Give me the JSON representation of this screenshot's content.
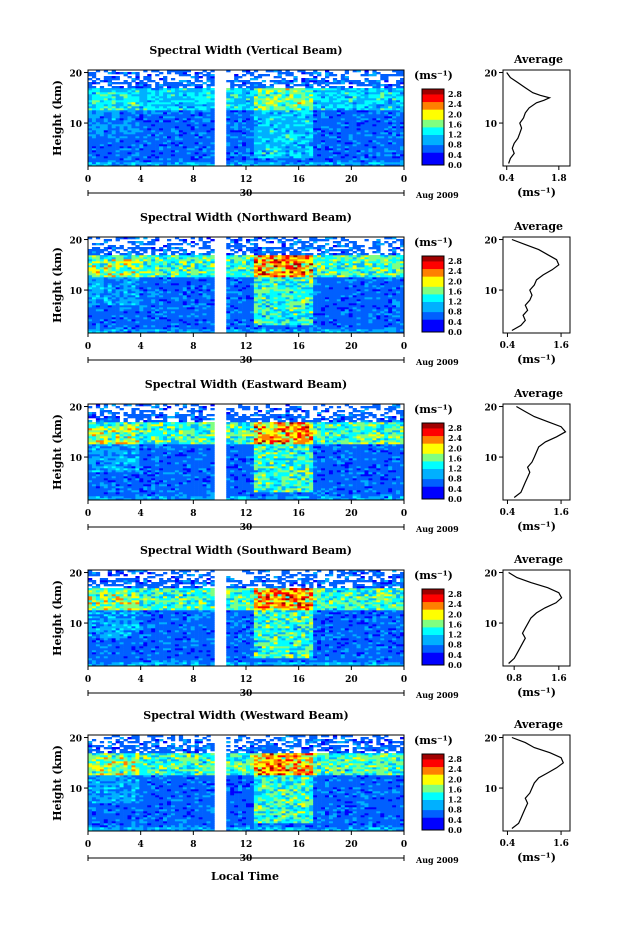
{
  "chart_data": {
    "type": "heatmap",
    "x_axis": {
      "ticks": [
        "0",
        "4",
        "8",
        "12",
        "16",
        "20",
        "0"
      ],
      "xlim": [
        0,
        24
      ],
      "label": "Local Time",
      "date_label": "30",
      "month_label": "Aug 2009"
    },
    "y_axis": {
      "ticks": [
        "20",
        "10"
      ],
      "ylim": [
        1.5,
        20.5
      ],
      "label": "Height (km)"
    },
    "colorbar": {
      "unit": "(ms⁻¹)",
      "ticks": [
        "2.8",
        "2.4",
        "2.0",
        "1.6",
        "1.2",
        "0.8",
        "0.4",
        "0.0"
      ],
      "range": [
        0.0,
        3.0
      ]
    },
    "colors": [
      "#2a2a8c",
      "#0000ff",
      "#0060ff",
      "#00b0ff",
      "#00ffff",
      "#80ff80",
      "#ffff00",
      "#ff8000",
      "#ff0000",
      "#a00000"
    ],
    "panels": [
      {
        "title": "Spectral Width (Vertical Beam)",
        "avg_title": "Average",
        "avg_xticks": [
          "0.4",
          "1.8"
        ],
        "avg_unit": "(ms⁻¹)",
        "avg_xlim": [
          0.3,
          2.1
        ],
        "avg_profile": [
          [
            0.45,
            2
          ],
          [
            0.5,
            3
          ],
          [
            0.6,
            4
          ],
          [
            0.55,
            5
          ],
          [
            0.6,
            6
          ],
          [
            0.7,
            7
          ],
          [
            0.75,
            8
          ],
          [
            0.8,
            9
          ],
          [
            0.75,
            10
          ],
          [
            0.85,
            11
          ],
          [
            0.9,
            12
          ],
          [
            1.0,
            13
          ],
          [
            1.2,
            14
          ],
          [
            1.4,
            14.5
          ],
          [
            1.55,
            15
          ],
          [
            1.3,
            15.5
          ],
          [
            1.1,
            16
          ],
          [
            0.9,
            17
          ],
          [
            0.7,
            18
          ],
          [
            0.5,
            19
          ],
          [
            0.4,
            20
          ]
        ]
      },
      {
        "title": "Spectral Width (Northward Beam)",
        "avg_title": "Average",
        "avg_xticks": [
          "0.4",
          "1.6"
        ],
        "avg_unit": "(ms⁻¹)",
        "avg_xlim": [
          0.3,
          1.8
        ],
        "avg_profile": [
          [
            0.5,
            2
          ],
          [
            0.7,
            3
          ],
          [
            0.8,
            4
          ],
          [
            0.75,
            5
          ],
          [
            0.85,
            6
          ],
          [
            0.8,
            7
          ],
          [
            0.9,
            8
          ],
          [
            0.95,
            9
          ],
          [
            0.9,
            10
          ],
          [
            1.0,
            11
          ],
          [
            1.05,
            12
          ],
          [
            1.2,
            13
          ],
          [
            1.4,
            14
          ],
          [
            1.55,
            15
          ],
          [
            1.5,
            16
          ],
          [
            1.3,
            17
          ],
          [
            1.1,
            18
          ],
          [
            0.8,
            19
          ],
          [
            0.5,
            20
          ]
        ]
      },
      {
        "title": "Spectral Width (Eastward Beam)",
        "avg_title": "Average",
        "avg_xticks": [
          "0.4",
          "1.6"
        ],
        "avg_unit": "(ms⁻¹)",
        "avg_xlim": [
          0.3,
          1.8
        ],
        "avg_profile": [
          [
            0.55,
            2
          ],
          [
            0.7,
            3
          ],
          [
            0.75,
            4
          ],
          [
            0.8,
            5
          ],
          [
            0.85,
            6
          ],
          [
            0.9,
            7
          ],
          [
            0.85,
            8
          ],
          [
            0.95,
            9
          ],
          [
            1.0,
            10
          ],
          [
            1.05,
            11
          ],
          [
            1.1,
            12
          ],
          [
            1.25,
            13
          ],
          [
            1.5,
            14
          ],
          [
            1.7,
            15
          ],
          [
            1.6,
            16
          ],
          [
            1.3,
            17
          ],
          [
            1.0,
            18
          ],
          [
            0.8,
            19
          ],
          [
            0.6,
            20
          ]
        ]
      },
      {
        "title": "Spectral Width (Southward Beam)",
        "avg_title": "Average",
        "avg_xticks": [
          "0.8",
          "1.6"
        ],
        "avg_unit": "(ms⁻¹)",
        "avg_xlim": [
          0.6,
          1.8
        ],
        "avg_profile": [
          [
            0.7,
            2
          ],
          [
            0.8,
            3
          ],
          [
            0.85,
            4
          ],
          [
            0.9,
            5
          ],
          [
            0.95,
            6
          ],
          [
            1.0,
            7
          ],
          [
            0.95,
            8
          ],
          [
            1.0,
            9
          ],
          [
            1.05,
            10
          ],
          [
            1.1,
            11
          ],
          [
            1.2,
            12
          ],
          [
            1.35,
            13
          ],
          [
            1.55,
            14
          ],
          [
            1.65,
            15
          ],
          [
            1.6,
            16
          ],
          [
            1.4,
            17
          ],
          [
            1.1,
            18
          ],
          [
            0.85,
            19
          ],
          [
            0.7,
            20
          ]
        ]
      },
      {
        "title": "Spectral Width (Westward Beam)",
        "avg_title": "Average",
        "avg_xticks": [
          "0.4",
          "1.6"
        ],
        "avg_unit": "(ms⁻¹)",
        "avg_xlim": [
          0.3,
          1.8
        ],
        "avg_profile": [
          [
            0.5,
            2
          ],
          [
            0.65,
            3
          ],
          [
            0.7,
            4
          ],
          [
            0.75,
            5
          ],
          [
            0.8,
            6
          ],
          [
            0.85,
            7
          ],
          [
            0.8,
            8
          ],
          [
            0.9,
            9
          ],
          [
            0.95,
            10
          ],
          [
            1.0,
            11
          ],
          [
            1.1,
            12
          ],
          [
            1.3,
            13
          ],
          [
            1.5,
            14
          ],
          [
            1.65,
            15
          ],
          [
            1.6,
            16
          ],
          [
            1.35,
            17
          ],
          [
            1.0,
            18
          ],
          [
            0.8,
            19
          ],
          [
            0.5,
            20
          ]
        ]
      }
    ]
  }
}
